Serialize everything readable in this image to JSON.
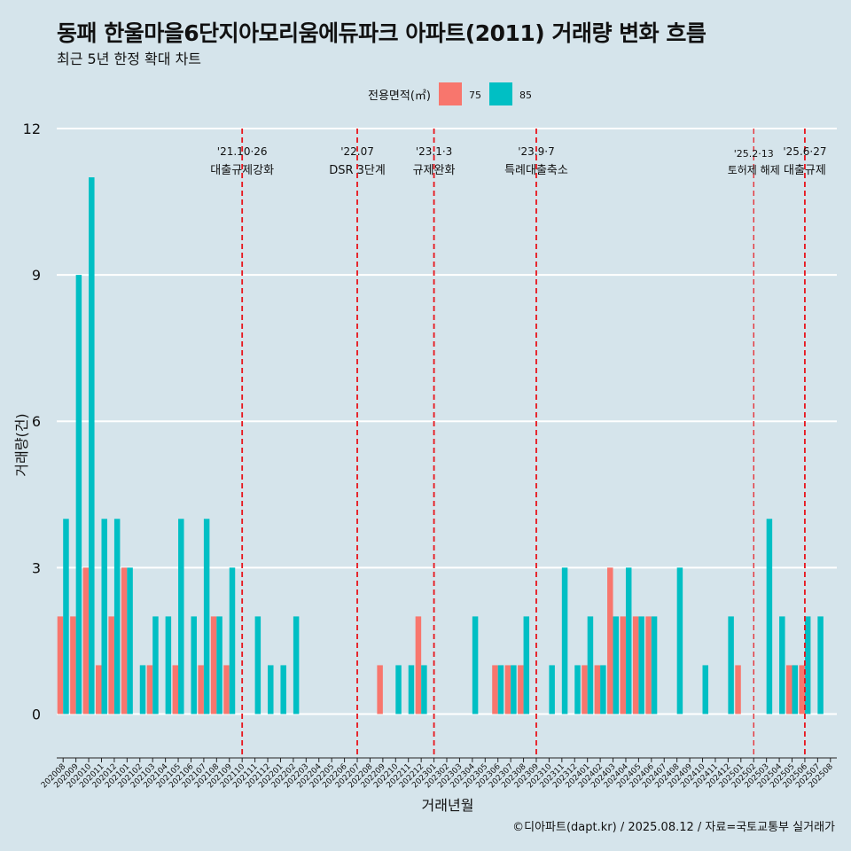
{
  "header": {
    "title": "동패 한울마을6단지아모리움에듀파크 아파트(2011) 거래량 변화 흐름",
    "subtitle": "최근 5년 한정 확대 차트"
  },
  "caption": "©디아파트(dapt.kr) / 2025.08.12 / 자료=국토교통부 실거래가",
  "chart_data": {
    "type": "bar",
    "title": "동패 한울마을6단지아모리움에듀파크 아파트(2011) 거래량 변화 흐름",
    "subtitle": "최근 5년 한정 확대 차트",
    "xlabel": "거래년월",
    "ylabel": "거래량(건)",
    "ylim": [
      -0.9,
      12
    ],
    "yticks": [
      0,
      3,
      6,
      9,
      12
    ],
    "legend": {
      "title": "전용면적(㎡)",
      "position": "top"
    },
    "grid": "horizontal",
    "categories": [
      "202008",
      "202009",
      "202010",
      "202011",
      "202012",
      "202101",
      "202102",
      "202103",
      "202104",
      "202105",
      "202106",
      "202107",
      "202108",
      "202109",
      "202110",
      "202111",
      "202112",
      "202201",
      "202202",
      "202203",
      "202204",
      "202205",
      "202206",
      "202207",
      "202208",
      "202209",
      "202210",
      "202211",
      "202212",
      "202301",
      "202302",
      "202303",
      "202304",
      "202305",
      "202306",
      "202307",
      "202308",
      "202309",
      "202310",
      "202311",
      "202312",
      "202401",
      "202402",
      "202403",
      "202404",
      "202405",
      "202406",
      "202407",
      "202408",
      "202409",
      "202410",
      "202411",
      "202412",
      "202501",
      "202502",
      "202503",
      "202504",
      "202505",
      "202506",
      "202507",
      "202508"
    ],
    "series": [
      {
        "name": "75",
        "color": "#f8766d",
        "values": [
          2,
          2,
          3,
          1,
          2,
          3,
          0,
          1,
          0,
          1,
          0,
          1,
          2,
          1,
          0,
          0,
          0,
          0,
          0,
          0,
          0,
          0,
          0,
          0,
          0,
          1,
          0,
          0,
          2,
          0,
          0,
          0,
          0,
          0,
          1,
          1,
          1,
          0,
          0,
          0,
          0,
          1,
          1,
          3,
          2,
          2,
          2,
          0,
          0,
          0,
          0,
          0,
          0,
          1,
          0,
          0,
          0,
          1,
          1,
          0,
          0
        ]
      },
      {
        "name": "85",
        "color": "#00bfc4",
        "values": [
          4,
          9,
          11,
          4,
          4,
          3,
          1,
          2,
          2,
          4,
          2,
          4,
          2,
          3,
          0,
          2,
          1,
          1,
          2,
          0,
          0,
          0,
          0,
          0,
          0,
          0,
          1,
          1,
          1,
          0,
          0,
          0,
          2,
          0,
          1,
          1,
          2,
          0,
          1,
          3,
          1,
          2,
          1,
          2,
          3,
          2,
          2,
          0,
          3,
          0,
          1,
          0,
          2,
          0,
          0,
          4,
          2,
          1,
          2,
          2,
          0
        ]
      }
    ],
    "annotations": [
      {
        "x": "202110",
        "date": "'21.10·26",
        "label": "대출규제강화"
      },
      {
        "x": "202207",
        "date": "'22.07",
        "label": "DSR 3단계"
      },
      {
        "x": "202301",
        "date": "'23.1·3",
        "label": "규제완화"
      },
      {
        "x": "202309",
        "date": "'23.9·7",
        "label": "특례대출축소"
      },
      {
        "x": "202502",
        "date": "'25.2·13",
        "label": "토허제 해제"
      },
      {
        "x": "202506",
        "date": "'25.6·27",
        "label": "대출규제"
      }
    ]
  }
}
